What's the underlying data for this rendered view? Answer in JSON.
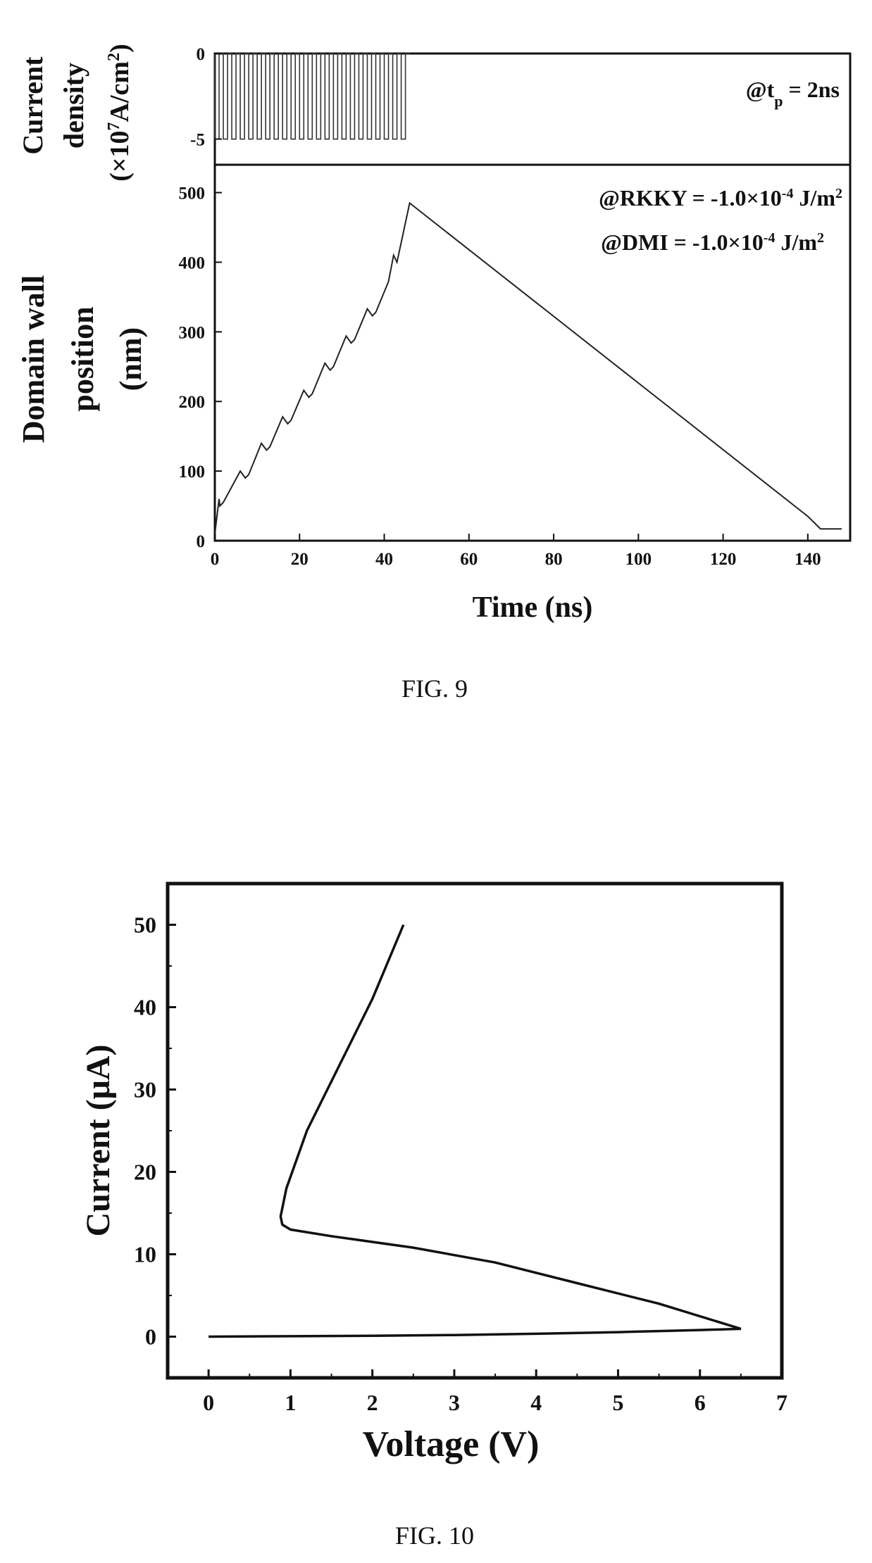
{
  "figures": {
    "fig9": {
      "caption": "FIG. 9"
    },
    "fig10": {
      "caption": "FIG. 10"
    }
  },
  "chart_data": [
    {
      "id": "fig9-top",
      "type": "line",
      "ylabel_lines": [
        "Current",
        "density",
        "(×10⁷A/cm²)"
      ],
      "xlim": [
        0,
        150
      ],
      "ylim": [
        -6.5,
        0
      ],
      "yticks": [
        0,
        -5
      ],
      "ytick_labels": [
        "0",
        "-5"
      ],
      "annotation": "@tp = 2ns",
      "pulse": {
        "period_ns": 2,
        "width_ns": 1,
        "amplitude": -5,
        "start_ns": 0,
        "end_ns": 46
      }
    },
    {
      "id": "fig9-bottom",
      "type": "line",
      "xlabel": "Time (ns)",
      "ylabel_lines": [
        "Domain wall",
        "position",
        "(nm)"
      ],
      "xlim": [
        0,
        150
      ],
      "ylim": [
        0,
        540
      ],
      "xticks": [
        0,
        20,
        40,
        60,
        80,
        100,
        120,
        140
      ],
      "yticks": [
        0,
        100,
        200,
        300,
        400,
        500
      ],
      "annotations": [
        "@RKKY = -1.0×10⁻⁴ J/m²",
        "@DMI = -1.0×10⁻⁴ J/m²"
      ],
      "series": [
        {
          "x": [
            0,
            1,
            1.2,
            2,
            6,
            7.2,
            8,
            11,
            12.2,
            13,
            16,
            17.2,
            18,
            21,
            22.2,
            23,
            26,
            27.2,
            28,
            31,
            32.2,
            33,
            36,
            37.2,
            38,
            41,
            42.2,
            43,
            46,
            140,
            143,
            148
          ],
          "y": [
            10,
            60,
            50,
            55,
            100,
            90,
            95,
            140,
            130,
            135,
            178,
            168,
            173,
            216,
            206,
            211,
            255,
            245,
            250,
            294,
            284,
            289,
            333,
            323,
            328,
            372,
            410,
            400,
            485,
            35,
            17,
            17
          ]
        }
      ]
    },
    {
      "id": "fig10",
      "type": "line",
      "xlabel": "Voltage (V)",
      "ylabel": "Current (μA)",
      "xlim": [
        -0.5,
        7
      ],
      "ylim": [
        -5,
        55
      ],
      "xticks": [
        0,
        1,
        2,
        3,
        4,
        5,
        6,
        7
      ],
      "yticks": [
        0,
        10,
        20,
        30,
        40,
        50
      ],
      "series": [
        {
          "x": [
            0,
            1.0,
            2.0,
            3.0,
            4.0,
            5.0,
            6.0,
            6.5,
            5.5,
            4.5,
            3.5,
            2.5,
            1.5,
            1.0,
            0.9,
            0.88,
            0.95,
            1.2,
            1.6,
            2.0,
            2.38
          ],
          "y": [
            0,
            0.05,
            0.1,
            0.2,
            0.35,
            0.55,
            0.8,
            0.95,
            4.0,
            6.5,
            9.0,
            10.8,
            12.2,
            13.0,
            13.6,
            14.6,
            18.0,
            25.0,
            33.0,
            41.0,
            50.0
          ]
        }
      ]
    }
  ]
}
